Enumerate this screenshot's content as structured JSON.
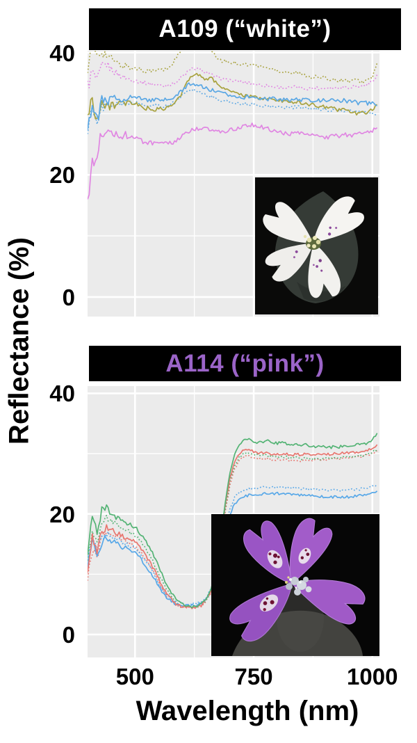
{
  "figure": {
    "y_axis_label": "Reflectance (%)",
    "x_axis_label": "Wavelength (nm)",
    "x_ticks": [
      500,
      750,
      1000
    ],
    "y_ticks": [
      0,
      20,
      40
    ],
    "colors": {
      "background": "#ffffff",
      "panel_background": "#ebebeb",
      "gridline": "#ffffff",
      "banner_background": "#000000",
      "banner_title_white": "#ffffff",
      "banner_title_purple": "#9b64c8",
      "olive": "#a8a23e",
      "orchid": "#e086e2",
      "blue": "#5aa7e4",
      "green": "#53b374",
      "red": "#e8766f"
    },
    "panels": [
      {
        "banner": "A109 (“white”)",
        "title_color": "#ffffff",
        "inset": "white flower photo"
      },
      {
        "banner": "A114 (“pink”)",
        "title_color": "#9b64c8",
        "inset": "pink flower photo"
      }
    ]
  },
  "chart_data": [
    {
      "type": "line",
      "title": "A109 (“white”)",
      "xlabel": "Wavelength (nm)",
      "ylabel": "Reflectance (%)",
      "xlim": [
        400,
        1015
      ],
      "ylim": [
        -3.2,
        40.3
      ],
      "x_ticks": [
        500,
        750,
        1000
      ],
      "y_ticks": [
        0,
        20,
        40
      ],
      "grid": "white major+minor on gray panel",
      "legend": "none",
      "series": [
        {
          "name": "olive dotted",
          "color": "#a8a23e",
          "dash": "dotted",
          "noise": 0.28,
          "x0": 400,
          "dx": 10,
          "values": [
            38.2,
            40.9,
            39.6,
            40.3,
            39.5,
            39.0,
            38.4,
            37.8,
            37.9,
            37.5,
            37.3,
            37.4,
            37.0,
            37.2,
            36.9,
            37.3,
            37.1,
            37.5,
            38.3,
            39.5,
            40.6,
            41.5,
            42.1,
            42.3,
            41.8,
            41.1,
            40.2,
            39.4,
            38.7,
            38.6,
            38.3,
            38.4,
            38.1,
            38.2,
            37.9,
            38.1,
            37.7,
            37.8,
            37.4,
            37.3,
            37.1,
            36.8,
            36.9,
            36.6,
            36.8,
            36.4,
            36.3,
            36.0,
            36.1,
            35.8,
            35.9,
            35.6,
            35.7,
            35.4,
            35.6,
            35.3,
            35.5,
            35.4,
            35.2,
            35.5,
            36.0,
            38.3
          ]
        },
        {
          "name": "orchid dotted",
          "color": "#e086e2",
          "dash": "dotted",
          "noise": 0.25,
          "x0": 400,
          "dx": 10,
          "values": [
            34.5,
            36.8,
            35.2,
            37.7,
            38.1,
            37.3,
            36.7,
            36.2,
            35.9,
            35.6,
            35.5,
            35.2,
            35.1,
            34.9,
            34.8,
            34.7,
            34.6,
            34.7,
            34.9,
            35.4,
            36.1,
            36.8,
            37.3,
            37.4,
            37.1,
            36.8,
            36.4,
            36.0,
            35.8,
            35.6,
            35.5,
            35.3,
            35.3,
            35.1,
            35.1,
            34.9,
            34.8,
            34.6,
            34.6,
            34.4,
            34.4,
            34.3,
            34.2,
            34.3,
            34.4,
            34.2,
            34.1,
            34.2,
            34.3,
            34.1,
            34.2,
            34.3,
            34.2,
            34.3,
            34.4,
            34.3,
            34.5,
            34.4,
            34.6,
            34.8,
            35.3,
            36.4
          ]
        },
        {
          "name": "blue dotted",
          "color": "#5aa7e4",
          "dash": "dotted",
          "noise": 0.25,
          "x0": 400,
          "dx": 10,
          "values": [
            27.8,
            30.6,
            28.0,
            31.1,
            31.3,
            31.6,
            31.6,
            31.4,
            31.7,
            31.9,
            31.7,
            31.6,
            31.5,
            31.3,
            31.4,
            31.2,
            31.3,
            31.4,
            31.7,
            32.3,
            33.1,
            33.7,
            34.0,
            33.8,
            33.4,
            33.1,
            32.8,
            32.5,
            32.2,
            32.0,
            31.9,
            31.8,
            31.7,
            31.6,
            31.6,
            31.5,
            31.4,
            31.3,
            31.2,
            31.2,
            31.1,
            31.1,
            31.0,
            31.0,
            31.1,
            31.0,
            30.9,
            30.8,
            30.8,
            30.7,
            30.7,
            30.6,
            30.6,
            30.5,
            30.5,
            30.4,
            30.4,
            30.3,
            30.2,
            30.1,
            30.0,
            29.6
          ]
        },
        {
          "name": "olive solid",
          "color": "#a8a23e",
          "dash": "solid",
          "noise": 0.3,
          "x0": 400,
          "dx": 10,
          "values": [
            29.5,
            32.6,
            28.9,
            31.9,
            30.8,
            31.7,
            31.3,
            31.6,
            31.5,
            31.8,
            31.6,
            31.2,
            31.0,
            30.8,
            30.6,
            30.7,
            30.8,
            31.0,
            31.5,
            32.3,
            33.6,
            35.1,
            36.3,
            36.7,
            36.1,
            35.6,
            35.8,
            35.2,
            34.5,
            34.1,
            33.8,
            33.4,
            33.1,
            32.9,
            32.8,
            32.8,
            32.6,
            32.5,
            32.4,
            32.3,
            32.2,
            32.1,
            32.0,
            31.9,
            32.0,
            31.8,
            31.6,
            31.5,
            31.4,
            31.2,
            31.1,
            30.9,
            30.8,
            30.6,
            30.7,
            30.5,
            30.2,
            29.9,
            30.1,
            30.3,
            30.8,
            31.5
          ]
        },
        {
          "name": "blue solid",
          "color": "#5aa7e4",
          "dash": "solid",
          "noise": 0.3,
          "x0": 400,
          "dx": 10,
          "values": [
            28.5,
            31.6,
            28.7,
            32.3,
            31.7,
            32.4,
            32.5,
            32.3,
            32.6,
            32.8,
            32.6,
            32.5,
            32.4,
            32.2,
            32.3,
            32.1,
            32.2,
            32.3,
            32.6,
            33.1,
            33.9,
            34.6,
            35.0,
            34.8,
            34.5,
            34.1,
            33.9,
            33.6,
            33.4,
            33.2,
            33.1,
            32.9,
            32.8,
            32.7,
            32.8,
            32.6,
            32.5,
            32.6,
            32.4,
            32.5,
            32.4,
            32.3,
            32.4,
            32.2,
            32.4,
            32.2,
            32.3,
            32.1,
            32.3,
            32.1,
            32.2,
            32.3,
            32.1,
            32.0,
            32.3,
            31.9,
            32.2,
            31.7,
            32.2,
            31.6,
            31.9,
            31.3
          ]
        },
        {
          "name": "orchid solid",
          "color": "#e086e2",
          "dash": "solid",
          "noise": 0.35,
          "x0": 400,
          "dx": 10,
          "values": [
            15.5,
            22.4,
            24.0,
            26.6,
            27.6,
            26.6,
            27.1,
            26.3,
            26.5,
            26.1,
            26.0,
            25.7,
            25.5,
            25.2,
            25.1,
            25.0,
            25.0,
            25.1,
            25.3,
            25.7,
            26.3,
            26.9,
            27.3,
            27.5,
            27.6,
            27.5,
            27.3,
            27.1,
            27.0,
            27.1,
            27.3,
            27.5,
            27.7,
            27.9,
            28.1,
            28.2,
            28.0,
            27.8,
            27.5,
            27.2,
            27.0,
            26.9,
            26.8,
            26.7,
            26.8,
            26.7,
            26.5,
            26.4,
            26.3,
            26.2,
            26.1,
            26.2,
            26.3,
            26.4,
            26.5,
            26.6,
            26.5,
            26.7,
            26.6,
            26.9,
            27.3,
            27.7
          ]
        }
      ]
    },
    {
      "type": "line",
      "title": "A114 (“pink”)",
      "xlabel": "Wavelength (nm)",
      "ylabel": "Reflectance (%)",
      "xlim": [
        400,
        1015
      ],
      "ylim": [
        -3.8,
        41.2
      ],
      "x_ticks": [
        500,
        750,
        1000
      ],
      "y_ticks": [
        0,
        20,
        40
      ],
      "grid": "white major+minor on gray panel",
      "legend": "none",
      "series": [
        {
          "name": "red dotted",
          "color": "#e8766f",
          "dash": "dotted",
          "noise": 0.2,
          "x0": 400,
          "dx": 10,
          "values": [
            9.5,
            13.5,
            12.5,
            16.2,
            17.1,
            16.7,
            16.3,
            15.9,
            15.5,
            15.1,
            14.6,
            13.8,
            12.8,
            11.6,
            10.2,
            8.7,
            7.2,
            6.0,
            5.2,
            4.7,
            4.5,
            4.4,
            4.4,
            4.5,
            4.8,
            5.5,
            7.0,
            9.9,
            14.6,
            20.1,
            24.7,
            27.5,
            28.9,
            29.5,
            29.6,
            29.3,
            29.1,
            29.2,
            29.1,
            28.9,
            29.0,
            28.9,
            29.0,
            28.8,
            28.9,
            28.8,
            29.0,
            28.8,
            29.0,
            28.9,
            29.1,
            29.0,
            29.2,
            29.1,
            29.3,
            29.2,
            29.4,
            29.4,
            29.6,
            29.7,
            30.1,
            30.5
          ]
        },
        {
          "name": "green dotted",
          "color": "#53b374",
          "dash": "dotted",
          "noise": 0.2,
          "x0": 400,
          "dx": 10,
          "values": [
            12.5,
            16.5,
            15.0,
            18.6,
            19.4,
            18.9,
            18.4,
            17.9,
            17.4,
            16.9,
            16.5,
            15.6,
            14.6,
            13.3,
            11.8,
            10.1,
            8.4,
            7.0,
            5.9,
            5.2,
            4.8,
            4.6,
            4.5,
            4.6,
            4.9,
            5.6,
            7.2,
            10.1,
            14.9,
            20.6,
            25.3,
            28.1,
            29.5,
            30.1,
            30.2,
            29.9,
            29.7,
            29.8,
            29.7,
            29.5,
            29.6,
            29.4,
            29.5,
            29.3,
            29.4,
            29.2,
            29.3,
            29.1,
            29.2,
            29.1,
            29.3,
            29.2,
            29.4,
            29.3,
            29.5,
            29.4,
            29.6,
            29.5,
            29.7,
            29.9,
            30.2,
            30.7
          ]
        },
        {
          "name": "blue dotted",
          "color": "#58a8e8",
          "dash": "dotted",
          "noise": 0.2,
          "x0": 400,
          "dx": 10,
          "values": [
            13.0,
            15.8,
            14.6,
            16.3,
            16.7,
            16.3,
            15.9,
            15.5,
            15.1,
            14.7,
            14.3,
            13.5,
            12.5,
            11.3,
            9.9,
            8.5,
            7.2,
            6.2,
            5.6,
            5.3,
            5.1,
            5.0,
            5.0,
            5.1,
            5.4,
            6.1,
            7.6,
            10.0,
            13.5,
            17.5,
            20.8,
            22.7,
            23.6,
            24.0,
            24.2,
            24.2,
            24.3,
            24.4,
            24.5,
            24.4,
            24.5,
            24.4,
            24.5,
            24.3,
            24.4,
            24.2,
            24.3,
            24.1,
            24.2,
            24.0,
            24.1,
            23.9,
            24.0,
            23.8,
            24.0,
            23.9,
            24.1,
            24.0,
            24.3,
            24.2,
            24.6,
            24.9
          ]
        },
        {
          "name": "blue solid",
          "color": "#58a8e8",
          "dash": "solid",
          "noise": 0.22,
          "x0": 400,
          "dx": 10,
          "values": [
            12.0,
            14.8,
            13.6,
            15.4,
            15.9,
            15.5,
            15.1,
            14.7,
            14.3,
            13.9,
            13.5,
            12.7,
            11.7,
            10.6,
            9.3,
            8.0,
            6.8,
            5.9,
            5.3,
            5.0,
            4.9,
            4.8,
            4.8,
            4.9,
            5.2,
            5.9,
            7.3,
            9.6,
            12.9,
            16.8,
            19.9,
            21.7,
            22.5,
            22.9,
            23.1,
            23.1,
            23.2,
            23.3,
            23.4,
            23.3,
            23.4,
            23.3,
            23.3,
            23.2,
            23.2,
            23.1,
            23.1,
            23.0,
            23.0,
            22.9,
            22.9,
            22.8,
            22.8,
            22.7,
            22.8,
            22.8,
            22.9,
            23.0,
            23.1,
            23.2,
            23.5,
            23.8
          ]
        },
        {
          "name": "red solid",
          "color": "#e8766f",
          "dash": "solid",
          "noise": 0.22,
          "x0": 400,
          "dx": 10,
          "values": [
            11.0,
            15.8,
            14.2,
            17.0,
            17.8,
            17.3,
            16.9,
            16.5,
            16.1,
            15.7,
            15.3,
            14.4,
            13.4,
            12.2,
            10.8,
            9.2,
            7.7,
            6.4,
            5.5,
            4.9,
            4.6,
            4.5,
            4.5,
            4.6,
            4.9,
            5.7,
            7.3,
            10.4,
            15.3,
            21.2,
            26.0,
            28.8,
            30.1,
            30.7,
            30.8,
            30.3,
            30.0,
            30.2,
            30.1,
            29.9,
            30.0,
            29.8,
            29.9,
            29.7,
            29.9,
            29.8,
            30.0,
            29.7,
            29.9,
            29.8,
            30.0,
            29.9,
            30.1,
            30.0,
            30.2,
            30.1,
            30.3,
            30.2,
            30.4,
            30.5,
            30.9,
            31.5
          ]
        },
        {
          "name": "green solid",
          "color": "#53b374",
          "dash": "solid",
          "noise": 0.22,
          "x0": 400,
          "dx": 10,
          "values": [
            14.0,
            19.5,
            17.0,
            20.8,
            21.2,
            19.9,
            19.4,
            19.0,
            18.5,
            18.2,
            17.8,
            16.8,
            15.8,
            14.5,
            13.0,
            11.2,
            9.4,
            7.8,
            6.5,
            5.6,
            5.0,
            4.7,
            4.6,
            4.7,
            5.0,
            5.8,
            7.5,
            10.8,
            15.8,
            21.8,
            26.8,
            30.0,
            31.5,
            32.2,
            32.3,
            32.0,
            31.8,
            32.0,
            32.1,
            31.8,
            31.7,
            31.9,
            31.6,
            31.5,
            31.7,
            31.4,
            31.5,
            31.3,
            31.2,
            31.4,
            31.1,
            31.0,
            31.2,
            31.1,
            31.3,
            31.2,
            31.4,
            31.6,
            31.5,
            31.8,
            32.3,
            33.4
          ]
        }
      ]
    }
  ]
}
